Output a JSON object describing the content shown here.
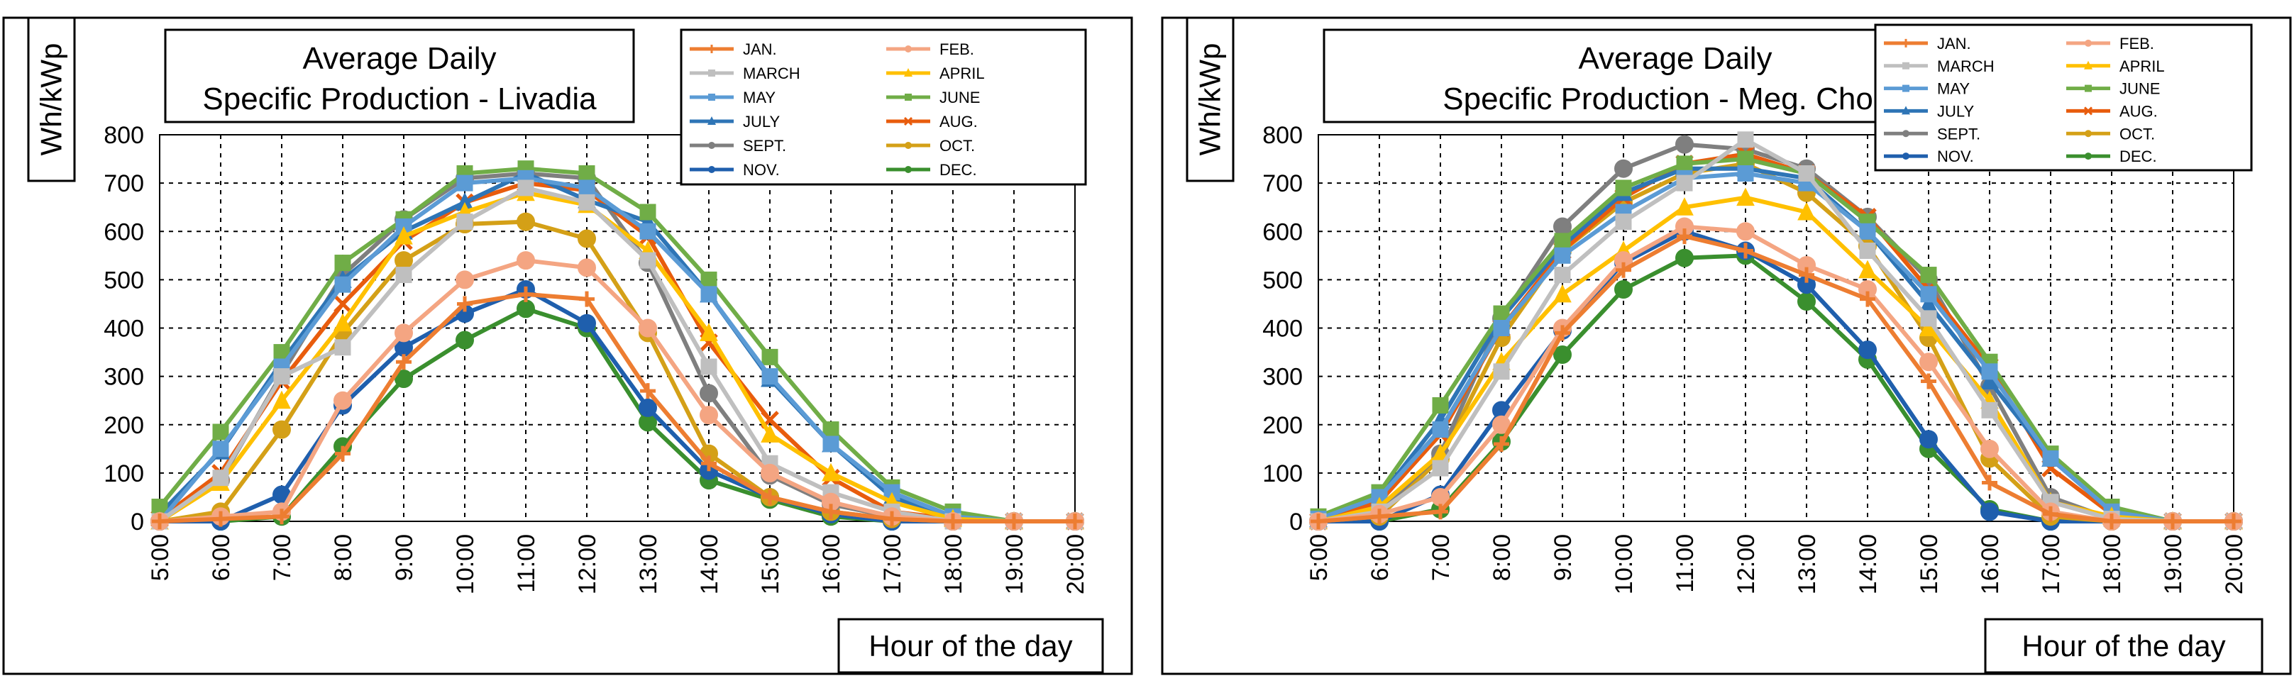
{
  "chart_data": [
    {
      "type": "line",
      "title": [
        "Average Daily",
        "Specific Production - Livadia"
      ],
      "xlabel": "Hour of the day",
      "ylabel": "Wh/kWp",
      "ylim": [
        0,
        800
      ],
      "yticks": [
        0,
        100,
        200,
        300,
        400,
        500,
        600,
        700,
        800
      ],
      "categories": [
        "5:00",
        "6:00",
        "7:00",
        "8:00",
        "9:00",
        "10:00",
        "11:00",
        "12:00",
        "13:00",
        "14:00",
        "15:00",
        "16:00",
        "17:00",
        "18:00",
        "19:00",
        "20:00"
      ],
      "grid": true,
      "legend_position": "top-right",
      "series": [
        {
          "name": "JAN.",
          "color": "#ED7D31",
          "marker": "plus",
          "values": [
            0,
            5,
            10,
            140,
            330,
            450,
            470,
            460,
            270,
            120,
            50,
            20,
            5,
            0,
            0,
            0
          ]
        },
        {
          "name": "FEB.",
          "color": "#F4A582",
          "marker": "circle",
          "values": [
            0,
            10,
            20,
            250,
            390,
            500,
            540,
            525,
            400,
            220,
            100,
            40,
            10,
            0,
            0,
            0
          ]
        },
        {
          "name": "MARCH",
          "color": "#BFBFBF",
          "marker": "square",
          "values": [
            0,
            90,
            300,
            360,
            510,
            620,
            690,
            660,
            540,
            320,
            120,
            60,
            20,
            0,
            0,
            0
          ]
        },
        {
          "name": "APRIL",
          "color": "#FFC000",
          "marker": "triangle",
          "values": [
            0,
            80,
            250,
            410,
            590,
            640,
            680,
            655,
            560,
            390,
            180,
            100,
            40,
            5,
            0,
            0
          ]
        },
        {
          "name": "MAY",
          "color": "#5B9BD5",
          "marker": "square",
          "values": [
            0,
            150,
            320,
            490,
            610,
            700,
            710,
            690,
            600,
            470,
            300,
            160,
            60,
            10,
            0,
            0
          ]
        },
        {
          "name": "JUNE",
          "color": "#70AD47",
          "marker": "square",
          "values": [
            30,
            185,
            350,
            535,
            625,
            720,
            730,
            720,
            640,
            500,
            340,
            190,
            70,
            20,
            0,
            0
          ]
        },
        {
          "name": "JULY",
          "color": "#2E75B6",
          "marker": "triangle",
          "values": [
            15,
            145,
            330,
            500,
            600,
            660,
            720,
            665,
            620,
            470,
            295,
            160,
            50,
            10,
            0,
            0
          ]
        },
        {
          "name": "AUG.",
          "color": "#E85C0D",
          "marker": "x",
          "values": [
            5,
            100,
            290,
            450,
            580,
            660,
            700,
            685,
            590,
            370,
            210,
            90,
            20,
            5,
            0,
            0
          ]
        },
        {
          "name": "SEPT.",
          "color": "#7F7F7F",
          "marker": "circle",
          "values": [
            0,
            85,
            305,
            510,
            625,
            710,
            720,
            710,
            535,
            265,
            95,
            35,
            10,
            0,
            0,
            0
          ]
        },
        {
          "name": "OCT.",
          "color": "#D4A017",
          "marker": "circle",
          "values": [
            0,
            20,
            190,
            390,
            540,
            615,
            620,
            585,
            390,
            140,
            50,
            20,
            5,
            0,
            0,
            0
          ]
        },
        {
          "name": "NOV.",
          "color": "#1F5FAD",
          "marker": "circle",
          "values": [
            0,
            0,
            55,
            240,
            360,
            430,
            480,
            410,
            235,
            105,
            50,
            15,
            0,
            0,
            0,
            0
          ]
        },
        {
          "name": "DEC.",
          "color": "#3A8F2E",
          "marker": "circle",
          "values": [
            0,
            0,
            10,
            155,
            295,
            375,
            440,
            400,
            205,
            85,
            45,
            10,
            0,
            0,
            0,
            0
          ]
        }
      ]
    },
    {
      "type": "line",
      "title": [
        "Average Daily",
        "Specific Production - Meg. Chorio"
      ],
      "xlabel": "Hour of the day",
      "ylabel": "Wh/kWp",
      "ylim": [
        0,
        800
      ],
      "yticks": [
        0,
        100,
        200,
        300,
        400,
        500,
        600,
        700,
        800
      ],
      "categories": [
        "5:00",
        "6:00",
        "7:00",
        "8:00",
        "9:00",
        "10:00",
        "11:00",
        "12:00",
        "13:00",
        "14:00",
        "15:00",
        "16:00",
        "17:00",
        "18:00",
        "19:00",
        "20:00"
      ],
      "grid": true,
      "legend_position": "top-right",
      "series": [
        {
          "name": "JAN.",
          "color": "#ED7D31",
          "marker": "plus",
          "values": [
            0,
            10,
            20,
            160,
            390,
            520,
            590,
            560,
            510,
            460,
            290,
            80,
            15,
            0,
            0,
            0
          ]
        },
        {
          "name": "FEB.",
          "color": "#F4A582",
          "marker": "circle",
          "values": [
            0,
            15,
            50,
            200,
            400,
            540,
            610,
            600,
            530,
            480,
            330,
            150,
            20,
            0,
            0,
            0
          ]
        },
        {
          "name": "MARCH",
          "color": "#BFBFBF",
          "marker": "square",
          "values": [
            0,
            20,
            110,
            310,
            510,
            620,
            700,
            790,
            720,
            560,
            420,
            230,
            40,
            5,
            0,
            0
          ]
        },
        {
          "name": "APRIL",
          "color": "#FFC000",
          "marker": "triangle",
          "values": [
            0,
            30,
            140,
            330,
            470,
            560,
            650,
            670,
            640,
            520,
            400,
            250,
            40,
            10,
            0,
            0
          ]
        },
        {
          "name": "MAY",
          "color": "#5B9BD5",
          "marker": "square",
          "values": [
            5,
            50,
            190,
            400,
            550,
            640,
            710,
            720,
            700,
            600,
            470,
            310,
            130,
            20,
            0,
            0
          ]
        },
        {
          "name": "JUNE",
          "color": "#70AD47",
          "marker": "square",
          "values": [
            10,
            60,
            240,
            430,
            580,
            690,
            740,
            750,
            720,
            620,
            510,
            330,
            140,
            30,
            0,
            0
          ]
        },
        {
          "name": "JULY",
          "color": "#2E75B6",
          "marker": "triangle",
          "values": [
            5,
            50,
            210,
            420,
            570,
            680,
            730,
            730,
            710,
            600,
            450,
            290,
            130,
            20,
            0,
            0
          ]
        },
        {
          "name": "AUG.",
          "color": "#E85C0D",
          "marker": "x",
          "values": [
            0,
            40,
            180,
            400,
            560,
            670,
            740,
            760,
            720,
            630,
            480,
            320,
            110,
            15,
            0,
            0
          ]
        },
        {
          "name": "SEPT.",
          "color": "#7F7F7F",
          "marker": "circle",
          "values": [
            0,
            20,
            140,
            420,
            610,
            730,
            780,
            770,
            730,
            630,
            500,
            280,
            50,
            5,
            0,
            0
          ]
        },
        {
          "name": "OCT.",
          "color": "#D4A017",
          "marker": "circle",
          "values": [
            0,
            10,
            130,
            380,
            560,
            660,
            720,
            740,
            680,
            570,
            380,
            130,
            10,
            0,
            0,
            0
          ]
        },
        {
          "name": "NOV.",
          "color": "#1F5FAD",
          "marker": "circle",
          "values": [
            0,
            0,
            55,
            230,
            395,
            535,
            600,
            560,
            490,
            355,
            170,
            20,
            0,
            0,
            0,
            0
          ]
        },
        {
          "name": "DEC.",
          "color": "#3A8F2E",
          "marker": "circle",
          "values": [
            0,
            0,
            25,
            165,
            345,
            480,
            545,
            550,
            455,
            335,
            150,
            25,
            0,
            0,
            0,
            0
          ]
        }
      ]
    }
  ]
}
